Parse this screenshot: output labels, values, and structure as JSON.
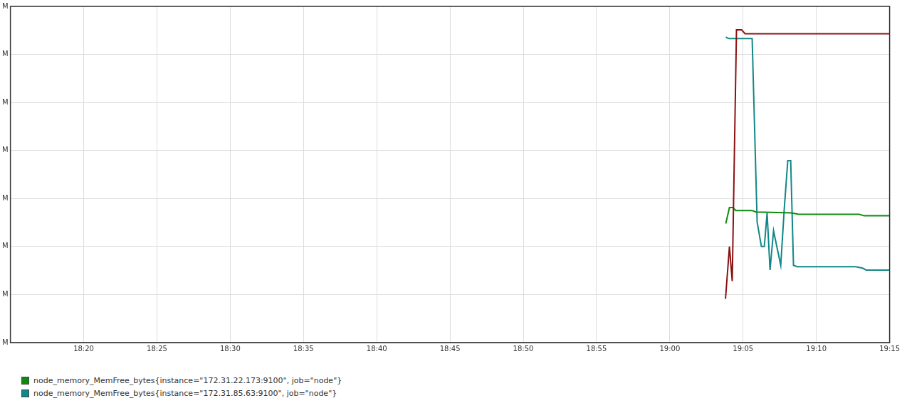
{
  "chart_data": {
    "type": "line",
    "xlim": [
      1095,
      1155
    ],
    "xticks": [
      {
        "value": 1100,
        "label": "18:20"
      },
      {
        "value": 1105,
        "label": "18:25"
      },
      {
        "value": 1110,
        "label": "18:30"
      },
      {
        "value": 1115,
        "label": "18:35"
      },
      {
        "value": 1120,
        "label": "18:40"
      },
      {
        "value": 1125,
        "label": "18:45"
      },
      {
        "value": 1130,
        "label": "18:50"
      },
      {
        "value": 1135,
        "label": "18:55"
      },
      {
        "value": 1140,
        "label": "19:00"
      },
      {
        "value": 1145,
        "label": "19:05"
      },
      {
        "value": 1150,
        "label": "19:10"
      },
      {
        "value": 1155,
        "label": "19:15"
      }
    ],
    "ylim": [
      100,
      800
    ],
    "yticks": [
      {
        "value": 100,
        "label": "M"
      },
      {
        "value": 200,
        "label": "M"
      },
      {
        "value": 300,
        "label": "M"
      },
      {
        "value": 400,
        "label": "M"
      },
      {
        "value": 500,
        "label": "M"
      },
      {
        "value": 600,
        "label": "M"
      },
      {
        "value": 700,
        "label": "M"
      },
      {
        "value": 800,
        "label": "M"
      }
    ],
    "grid": true,
    "legend": "bottom-left",
    "series": [
      {
        "color": "#8b1111",
        "x": [
          1143.8,
          1144.07,
          1144.26,
          1144.55,
          1144.9,
          1145.14,
          1155
        ],
        "values": [
          191,
          300,
          228,
          751,
          751,
          743,
          743
        ]
      },
      {
        "name": "node_memory_MemFree_bytes{instance=\"172.31.22.173:9100\", job=\"node\"}",
        "color": "#0f8a0f",
        "x": [
          1143.82,
          1144.07,
          1144.31,
          1144.5,
          1145.62,
          1145.87,
          1148.3,
          1148.78,
          1152.92,
          1153.26,
          1155
        ],
        "values": [
          348,
          381,
          381,
          375,
          375,
          372,
          370,
          367,
          367,
          364,
          364
        ]
      },
      {
        "name": "node_memory_MemFree_bytes{instance=\"172.31.85.63:9100\", job=\"node\"}",
        "color": "#118787",
        "x": [
          1143.82,
          1144.02,
          1145.62,
          1145.96,
          1146.25,
          1146.45,
          1146.64,
          1146.84,
          1147.08,
          1147.33,
          1147.57,
          1147.81,
          1148.05,
          1148.25,
          1148.44,
          1148.69,
          1152.68,
          1153.16,
          1153.4,
          1155
        ],
        "values": [
          736,
          733,
          733,
          351,
          300,
          300,
          370,
          251,
          333,
          296,
          261,
          378,
          479,
          479,
          261,
          258,
          258,
          255,
          251,
          251
        ]
      }
    ]
  }
}
